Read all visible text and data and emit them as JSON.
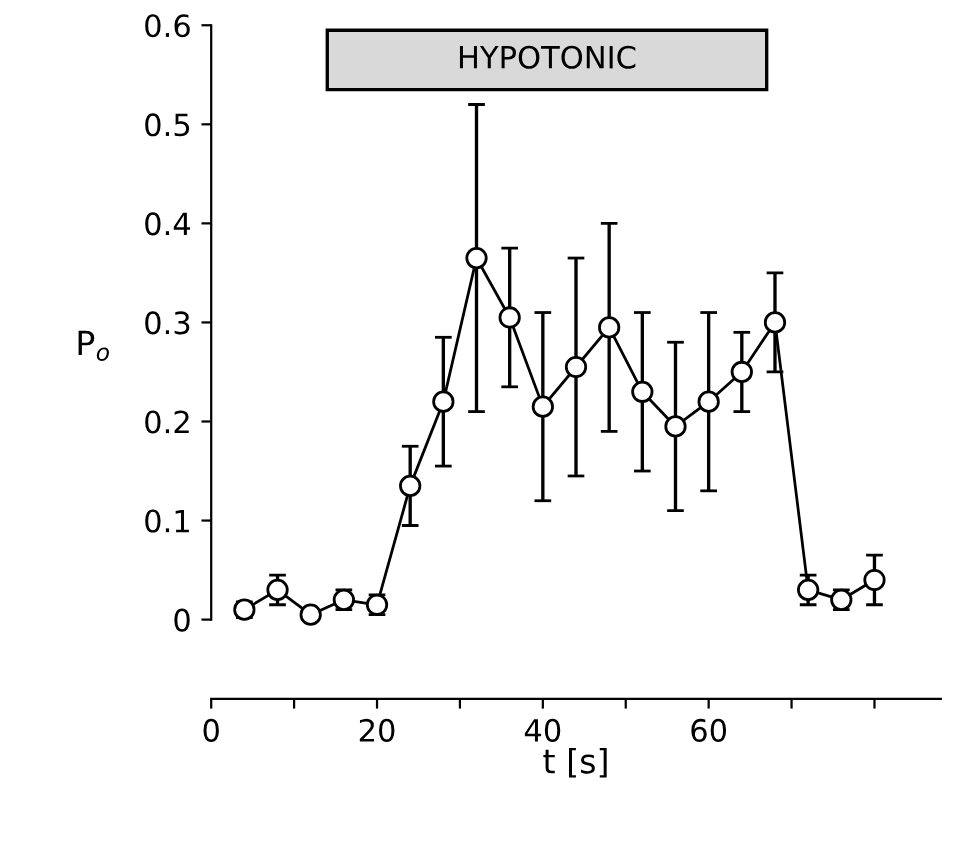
{
  "chart_data": {
    "type": "line",
    "xlabel": "t [s]",
    "ylabel": "P$_{o}$",
    "x": [
      4,
      8,
      12,
      16,
      20,
      24,
      28,
      32,
      36,
      40,
      44,
      48,
      52,
      56,
      60,
      64,
      68,
      72,
      76,
      80
    ],
    "series": [
      {
        "color": "#000000",
        "values": [
          0.01,
          0.03,
          0.005,
          0.02,
          0.015,
          0.135,
          0.22,
          0.365,
          0.305,
          0.215,
          0.255,
          0.295,
          0.23,
          0.195,
          0.22,
          0.25,
          0.3,
          0.03,
          0.02,
          0.04
        ],
        "errors": [
          0.008,
          0.015,
          0.006,
          0.01,
          0.01,
          0.04,
          0.065,
          0.155,
          0.07,
          0.095,
          0.11,
          0.105,
          0.08,
          0.085,
          0.09,
          0.04,
          0.05,
          0.015,
          0.01,
          0.025
        ]
      }
    ],
    "marker": "circle",
    "line_style": "solid",
    "grid": false,
    "legend": false,
    "xlim": [
      0,
      88
    ],
    "xticks": [
      0,
      {
        "value": 10,
        "label": null
      },
      20,
      {
        "value": 30,
        "label": null
      },
      40,
      {
        "value": 50,
        "label": null
      },
      60,
      {
        "value": 70,
        "label": null
      },
      {
        "value": 80,
        "label": null
      }
    ],
    "ylim": [
      -0.08,
      0.6
    ],
    "yticks": [
      0,
      0.1,
      0.2,
      0.3,
      0.4,
      0.5,
      0.6
    ],
    "bands": [
      {
        "axis": "x",
        "from": 14,
        "to": 67,
        "label": "HYPOTONIC",
        "color": "#d9d9d9"
      }
    ]
  }
}
